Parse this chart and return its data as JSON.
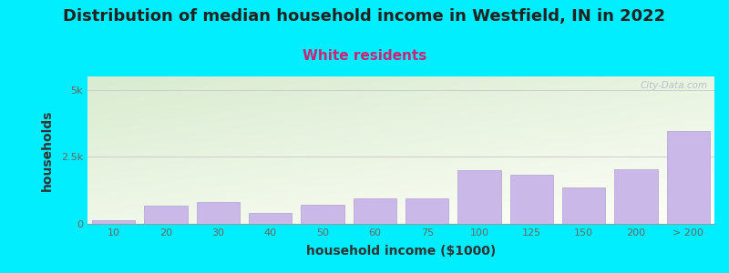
{
  "title": "Distribution of median household income in Westfield, IN in 2022",
  "subtitle": "White residents",
  "xlabel": "household income ($1000)",
  "ylabel": "households",
  "categories": [
    "10",
    "20",
    "30",
    "40",
    "50",
    "60",
    "75",
    "100",
    "125",
    "150",
    "200",
    "> 200"
  ],
  "values": [
    120,
    680,
    820,
    420,
    700,
    950,
    940,
    2000,
    1820,
    1350,
    2050,
    3450
  ],
  "bar_color": "#c9b8e8",
  "bar_edgecolor": "#b0a0d0",
  "background_outer": "#00eeff",
  "bg_grad_topleft": "#d8ecd0",
  "bg_grad_bottomright": "#e8f0f8",
  "grid_color": "#cccccc",
  "ylim": [
    0,
    5500
  ],
  "ytick_labels": [
    "0",
    "2.5k",
    "5k"
  ],
  "ytick_values": [
    0,
    2500,
    5000
  ],
  "title_fontsize": 13,
  "subtitle_fontsize": 11,
  "subtitle_color": "#cc2277",
  "axis_label_fontsize": 10,
  "tick_fontsize": 8,
  "watermark": "City-Data.com"
}
